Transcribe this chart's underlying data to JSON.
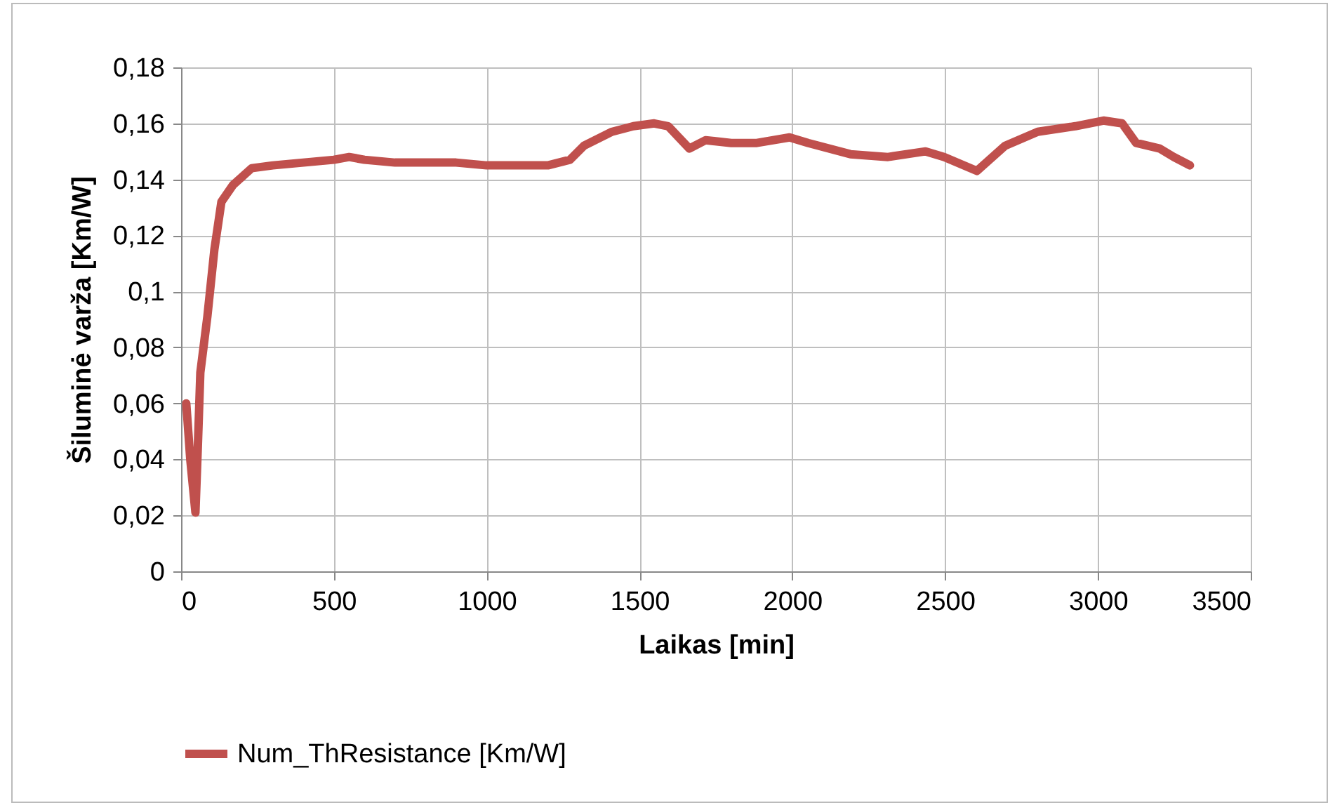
{
  "chart_data": {
    "type": "line",
    "xlabel": "Laikas [min]",
    "ylabel": "Šiluminė varža [Km/W]",
    "xlim": [
      0,
      3500
    ],
    "xticks": [
      0,
      500,
      1000,
      1500,
      2000,
      2500,
      3000,
      3500
    ],
    "ylim": [
      0,
      0.18
    ],
    "yticks": [
      0,
      {
        "value": 0.02,
        "label": "0,02"
      },
      {
        "value": 0.04,
        "label": "0,04"
      },
      {
        "value": 0.06,
        "label": "0,06"
      },
      {
        "value": 0.08,
        "label": "0,08"
      },
      {
        "value": 0.1,
        "label": "0,1"
      },
      {
        "value": 0.12,
        "label": "0,12"
      },
      {
        "value": 0.14,
        "label": "0,14"
      },
      {
        "value": 0.16,
        "label": "0,16"
      },
      {
        "value": 0.18,
        "label": "0,18"
      }
    ],
    "grid": true,
    "legend": "bottom",
    "marker": "none",
    "line_style": "solid",
    "x": [
      17,
      30,
      47,
      55,
      63,
      86,
      109,
      132,
      170,
      231,
      300,
      400,
      500,
      550,
      600,
      700,
      800,
      900,
      1000,
      1100,
      1200,
      1272,
      1318,
      1410,
      1480,
      1548,
      1594,
      1663,
      1716,
      1800,
      1884,
      1991,
      2052,
      2190,
      2313,
      2436,
      2497,
      2604,
      2696,
      2803,
      2926,
      3018,
      3079,
      3125,
      3202,
      3248,
      3301
    ],
    "series": [
      {
        "name": "Num_ThResistance [Km/W]",
        "color": "#c0504d",
        "values": [
          0.06,
          0.04,
          0.021,
          0.045,
          0.071,
          0.091,
          0.115,
          0.132,
          0.138,
          0.144,
          0.145,
          0.146,
          0.147,
          0.148,
          0.147,
          0.146,
          0.146,
          0.146,
          0.145,
          0.145,
          0.145,
          0.147,
          0.152,
          0.157,
          0.159,
          0.16,
          0.159,
          0.151,
          0.154,
          0.153,
          0.153,
          0.155,
          0.153,
          0.149,
          0.148,
          0.15,
          0.148,
          0.143,
          0.152,
          0.157,
          0.159,
          0.161,
          0.16,
          0.153,
          0.151,
          0.148,
          0.145
        ]
      }
    ]
  }
}
